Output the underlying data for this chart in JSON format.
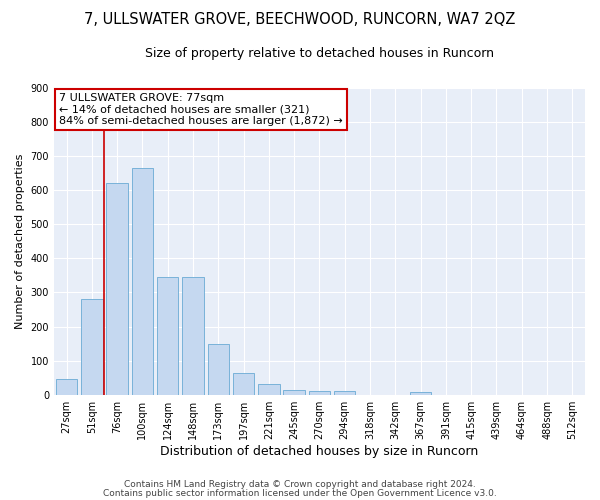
{
  "title": "7, ULLSWATER GROVE, BEECHWOOD, RUNCORN, WA7 2QZ",
  "subtitle": "Size of property relative to detached houses in Runcorn",
  "xlabel": "Distribution of detached houses by size in Runcorn",
  "ylabel": "Number of detached properties",
  "categories": [
    "27sqm",
    "51sqm",
    "76sqm",
    "100sqm",
    "124sqm",
    "148sqm",
    "173sqm",
    "197sqm",
    "221sqm",
    "245sqm",
    "270sqm",
    "294sqm",
    "318sqm",
    "342sqm",
    "367sqm",
    "391sqm",
    "415sqm",
    "439sqm",
    "464sqm",
    "488sqm",
    "512sqm"
  ],
  "values": [
    45,
    280,
    620,
    665,
    345,
    345,
    150,
    65,
    30,
    13,
    11,
    10,
    0,
    0,
    8,
    0,
    0,
    0,
    0,
    0,
    0
  ],
  "bar_color": "#c5d8f0",
  "bar_edge_color": "#6aaad4",
  "vline_color": "#cc0000",
  "vline_x_index": 2,
  "annotation_text": "7 ULLSWATER GROVE: 77sqm\n← 14% of detached houses are smaller (321)\n84% of semi-detached houses are larger (1,872) →",
  "annotation_box_color": "white",
  "annotation_box_edge": "#cc0000",
  "ylim": [
    0,
    900
  ],
  "yticks": [
    0,
    100,
    200,
    300,
    400,
    500,
    600,
    700,
    800,
    900
  ],
  "footer1": "Contains HM Land Registry data © Crown copyright and database right 2024.",
  "footer2": "Contains public sector information licensed under the Open Government Licence v3.0.",
  "fig_bg_color": "#ffffff",
  "plot_bg_color": "#e8eef8",
  "grid_color": "#ffffff",
  "title_fontsize": 10.5,
  "subtitle_fontsize": 9,
  "ylabel_fontsize": 8,
  "xlabel_fontsize": 9,
  "tick_fontsize": 7,
  "annotation_fontsize": 8,
  "footer_fontsize": 6.5
}
